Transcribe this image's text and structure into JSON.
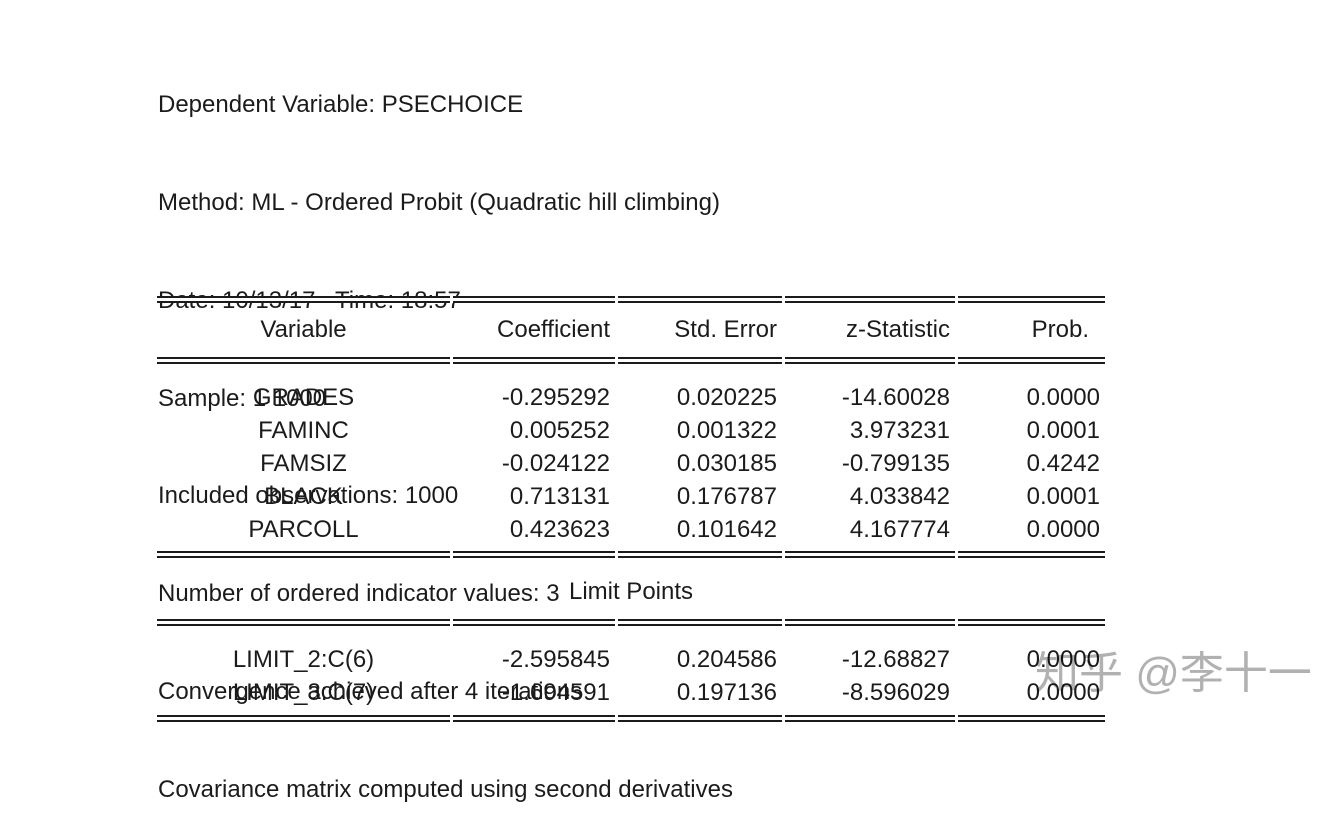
{
  "colors": {
    "background": "#ffffff",
    "text": "#1b1b1b",
    "rule": "#1b1b1b",
    "watermark": "#9e9e9e"
  },
  "header_lines": [
    "Dependent Variable: PSECHOICE",
    "Method: ML - Ordered Probit (Quadratic hill climbing)",
    "Date: 10/13/17   Time: 18:57",
    "Sample: 1 1000",
    "Included observations: 1000",
    "Number of ordered indicator values: 3",
    "Convergence achieved after 4 iterations",
    "Covariance matrix computed using second derivatives"
  ],
  "table": {
    "columns": {
      "variable": "Variable",
      "coefficient": "Coefficient",
      "std_error": "Std. Error",
      "z_statistic": "z-Statistic",
      "prob": "Prob."
    },
    "coefficients": [
      {
        "variable": "GRADES",
        "coefficient": "-0.295292",
        "std_error": "0.020225",
        "z_statistic": "-14.60028",
        "prob": "0.0000"
      },
      {
        "variable": "FAMINC",
        "coefficient": "0.005252",
        "std_error": "0.001322",
        "z_statistic": "3.973231",
        "prob": "0.0001"
      },
      {
        "variable": "FAMSIZ",
        "coefficient": "-0.024122",
        "std_error": "0.030185",
        "z_statistic": "-0.799135",
        "prob": "0.4242"
      },
      {
        "variable": "BLACK",
        "coefficient": "0.713131",
        "std_error": "0.176787",
        "z_statistic": "4.033842",
        "prob": "0.0001"
      },
      {
        "variable": "PARCOLL",
        "coefficient": "0.423623",
        "std_error": "0.101642",
        "z_statistic": "4.167774",
        "prob": "0.0000"
      }
    ],
    "limit_section_title": "Limit Points",
    "limit_points": [
      {
        "variable": "LIMIT_2:C(6)",
        "coefficient": "-2.595845",
        "std_error": "0.204586",
        "z_statistic": "-12.68827",
        "prob": "0.0000"
      },
      {
        "variable": "LIMIT_3:C(7)",
        "coefficient": "-1.694591",
        "std_error": "0.197136",
        "z_statistic": "-8.596029",
        "prob": "0.0000"
      }
    ]
  },
  "watermark": {
    "text": "知乎 @李十一"
  }
}
